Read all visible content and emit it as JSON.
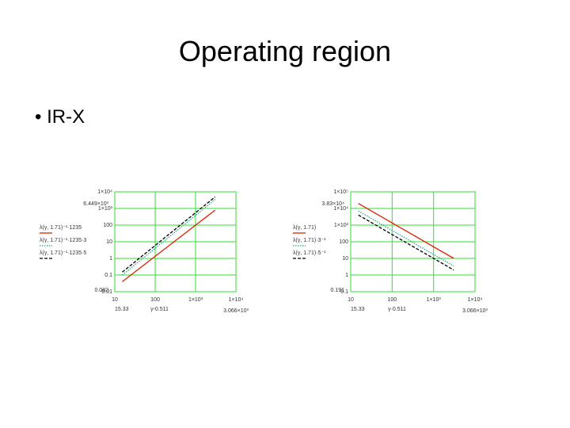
{
  "slide": {
    "title": "Operating region",
    "bullet": "IR-X"
  },
  "chart_data": [
    {
      "type": "line",
      "log_x": true,
      "log_y": true,
      "grid": true,
      "grid_color": "#33dd33",
      "xlim": [
        10,
        10000
      ],
      "ylim": [
        0.01,
        10000
      ],
      "xticks": [
        10,
        100,
        {
          "value": 1000,
          "label": "1×10³"
        },
        {
          "value": 10000,
          "label": "1×10⁴"
        }
      ],
      "yticks": [
        0.01,
        0.1,
        1,
        10,
        100,
        {
          "value": 1000,
          "label": "1×10³"
        },
        {
          "value": 10000,
          "label": "1×10⁴"
        }
      ],
      "x_label": "γ-0.511",
      "annotations": [
        "6.449×10³",
        "0.082",
        "15.33",
        "3.066×10³"
      ],
      "x": [
        15.33,
        3066
      ],
      "series": [
        {
          "name": "λ(γ, 1.71)⁻¹·1235",
          "color": "#dd2200",
          "style": "solid",
          "values": [
            0.04,
            800
          ]
        },
        {
          "name": "λ(γ, 1.71)⁻¹·1235·3",
          "color": "#22aa88",
          "style": "dotted",
          "values": [
            0.1,
            3500
          ]
        },
        {
          "name": "λ(γ, 1.71)⁻¹·1235·5",
          "color": "#000000",
          "style": "dashed",
          "values": [
            0.15,
            5000
          ]
        }
      ]
    },
    {
      "type": "line",
      "log_x": true,
      "log_y": true,
      "grid": true,
      "grid_color": "#33dd33",
      "xlim": [
        10,
        10000
      ],
      "ylim": [
        0.1,
        100000
      ],
      "xticks": [
        10,
        100,
        {
          "value": 1000,
          "label": "1×10³"
        },
        {
          "value": 10000,
          "label": "1×10⁴"
        }
      ],
      "yticks": [
        0.1,
        1,
        10,
        100,
        {
          "value": 1000,
          "label": "1×10³"
        },
        {
          "value": 10000,
          "label": "1×10⁴"
        },
        {
          "value": 100000,
          "label": "1×10⁵"
        }
      ],
      "x_label": "γ·0.511",
      "annotations": [
        "3.83×10⁴",
        "0.191",
        "15.33",
        "3.066×10³"
      ],
      "x": [
        15.33,
        3066
      ],
      "series": [
        {
          "name": "λ(γ, 1.71)",
          "color": "#dd2200",
          "style": "solid",
          "values": [
            20000,
            10
          ]
        },
        {
          "name": "λ(γ, 1.71)·3⁻¹",
          "color": "#22aa88",
          "style": "dotted",
          "values": [
            7000,
            3.5
          ]
        },
        {
          "name": "λ(γ, 1.71)·5⁻¹",
          "color": "#000000",
          "style": "dashed",
          "values": [
            4000,
            2
          ]
        }
      ]
    }
  ]
}
